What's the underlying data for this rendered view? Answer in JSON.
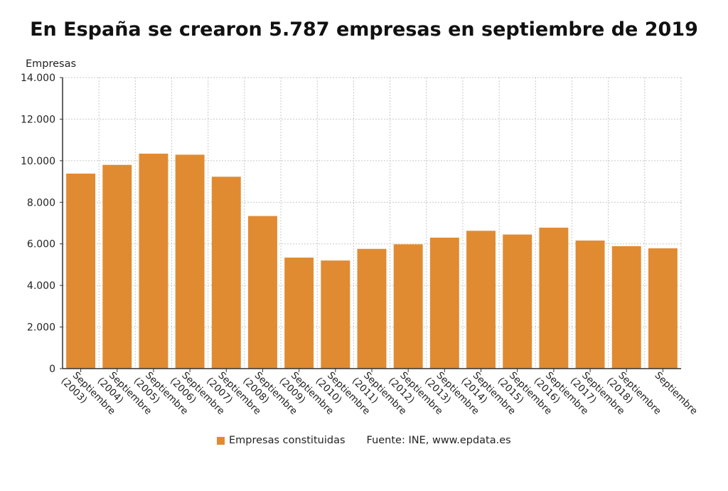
{
  "title": "En España se crearon 5.787 empresas en septiembre de 2019",
  "source": "Fuente: INE, www.epdata.es",
  "colors": {
    "bar": "#e08b32",
    "grid": "#c8c8c8",
    "axis": "#333333"
  },
  "chart_data": {
    "type": "bar",
    "ylabel": "Empresas",
    "xlabel": "",
    "ylim": [
      0,
      14000
    ],
    "yticks": [
      0,
      2000,
      4000,
      6000,
      8000,
      10000,
      12000,
      14000
    ],
    "ytick_labels": [
      "0",
      "2.000",
      "4.000",
      "6.000",
      "8.000",
      "10.000",
      "12.000",
      "14.000"
    ],
    "grid": true,
    "legend_position": "bottom",
    "categories": [
      "Septiembre (2003)",
      "Septiembre (2004)",
      "Septiembre (2005)",
      "Septiembre (2006)",
      "Septiembre (2007)",
      "Septiembre (2008)",
      "Septiembre (2009)",
      "Septiembre (2010)",
      "Septiembre (2011)",
      "Septiembre (2012)",
      "Septiembre (2013)",
      "Septiembre (2014)",
      "Septiembre (2015)",
      "Septiembre (2016)",
      "Septiembre (2017)",
      "Septiembre (2018)",
      "Septiembre"
    ],
    "series": [
      {
        "name": "Empresas constituidas",
        "values": [
          9380,
          9800,
          10340,
          10290,
          9230,
          7340,
          5340,
          5200,
          5760,
          5980,
          6300,
          6630,
          6450,
          6780,
          6160,
          5890,
          5787
        ]
      }
    ]
  }
}
